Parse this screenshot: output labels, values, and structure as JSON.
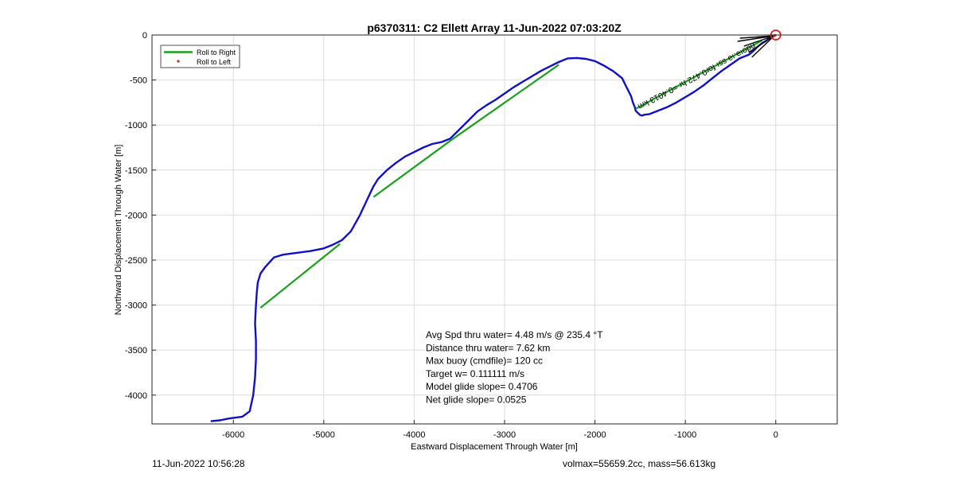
{
  "chart_data": {
    "type": "line",
    "title": "p6370311: C2 Ellett Array 11-Jun-2022 07:03:20Z",
    "xlabel": "Eastward Displacement Through Water [m]",
    "ylabel": "Northward Displacement Through Water [m]",
    "xlim": [
      -6900,
      680
    ],
    "ylim": [
      -4320,
      0
    ],
    "xticks": [
      -6000,
      -5000,
      -4000,
      -3000,
      -2000,
      -1000,
      0
    ],
    "yticks": [
      0,
      -500,
      -1000,
      -1500,
      -2000,
      -2500,
      -3000,
      -3500,
      -4000
    ],
    "grid": true,
    "legend_position": "top-left",
    "legend": [
      {
        "label": "Roll to Right",
        "color": "#1aa01a",
        "marker": "line"
      },
      {
        "label": "Roll to Left",
        "color": "#e02020",
        "marker": "dot"
      }
    ],
    "trajectory": {
      "color": "#1010c8",
      "x": [
        -6250,
        -6150,
        -6050,
        -5900,
        -5820,
        -5780,
        -5760,
        -5750,
        -5750,
        -5760,
        -5750,
        -5740,
        -5730,
        -5700,
        -5650,
        -5550,
        -5450,
        -5300,
        -5150,
        -5000,
        -4900,
        -4800,
        -4700,
        -4600,
        -4520,
        -4450,
        -4400,
        -4300,
        -4200,
        -4100,
        -4000,
        -3900,
        -3800,
        -3700,
        -3600,
        -3550,
        -3500,
        -3400,
        -3300,
        -3200,
        -3100,
        -3000,
        -2900,
        -2800,
        -2700,
        -2600,
        -2500,
        -2400,
        -2300,
        -2200,
        -2100,
        -2000,
        -1900,
        -1800,
        -1700,
        -1650,
        -1600,
        -1580,
        -1560,
        -1550,
        -1520,
        -1500,
        -1480,
        -1450,
        -1400,
        -1300,
        -1200,
        -1100,
        -1000,
        -900,
        -800,
        -700,
        -600,
        -500,
        -400,
        -300,
        -250,
        -200,
        -150,
        -100,
        -80,
        -60,
        -40,
        -20,
        0
      ],
      "y": [
        -4290,
        -4280,
        -4260,
        -4240,
        -4180,
        -4000,
        -3800,
        -3600,
        -3400,
        -3200,
        -3000,
        -2850,
        -2750,
        -2650,
        -2580,
        -2470,
        -2440,
        -2420,
        -2400,
        -2370,
        -2330,
        -2280,
        -2180,
        -2000,
        -1830,
        -1680,
        -1600,
        -1500,
        -1420,
        -1350,
        -1300,
        -1250,
        -1210,
        -1190,
        -1150,
        -1100,
        -1050,
        -950,
        -850,
        -780,
        -720,
        -650,
        -580,
        -520,
        -460,
        -400,
        -350,
        -300,
        -260,
        -255,
        -265,
        -290,
        -340,
        -400,
        -480,
        -580,
        -680,
        -750,
        -800,
        -840,
        -870,
        -890,
        -895,
        -885,
        -880,
        -840,
        -800,
        -750,
        -690,
        -630,
        -560,
        -480,
        -400,
        -330,
        -260,
        -220,
        -180,
        -130,
        -90,
        -60,
        -40,
        -25,
        -12,
        -5,
        0
      ]
    },
    "roll_right_segments": [
      {
        "x": [
          -5700,
          -4820
        ],
        "y": [
          -3030,
          -2320
        ]
      },
      {
        "x": [
          -4450,
          -3580
        ],
        "y": [
          -1800,
          -1160
        ]
      },
      {
        "x": [
          -3580,
          -2400
        ],
        "y": [
          -1160,
          -330
        ]
      },
      {
        "x": [
          -1550,
          -150
        ],
        "y": [
          -820,
          -60
        ]
      }
    ],
    "roll_left_points": {
      "x": [
        -15,
        -5
      ],
      "y": [
        -8,
        -3
      ]
    },
    "end_marker": {
      "x": 0,
      "y": 0,
      "color": "#e02020"
    },
    "annotation": {
      "text": "ndoıǝ.ıǝ ssı for0.472 hr =0.4013 km"
    },
    "stats": [
      "Avg Spd thru water=  4.48 m/s @ 235.4 °T",
      "Distance thru water=  7.62 km",
      "Max buoy (cmdfile)= 120 cc",
      "Target w= 0.111111 m/s",
      "Model glide slope= 0.4706",
      "Net glide slope= 0.0525"
    ]
  },
  "footer": {
    "timestamp": "11-Jun-2022 10:56:28",
    "volume_mass": "volmax=55659.2cc, mass=56.613kg"
  }
}
